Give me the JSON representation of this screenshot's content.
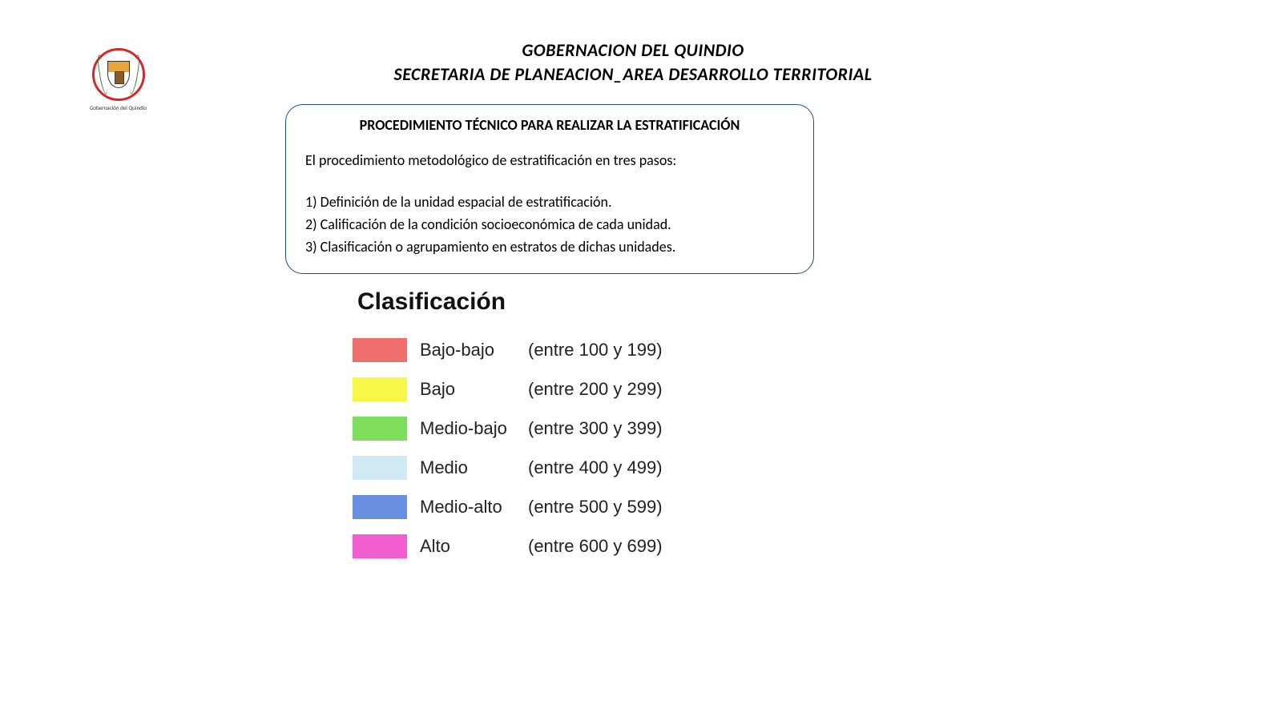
{
  "logo": {
    "caption": "Gobernación del Quindío"
  },
  "header": {
    "line1": "GOBERNACION DEL QUINDIO",
    "line2": "SECRETARIA DE PLANEACION_AREA DESARROLLO TERRITORIAL"
  },
  "procedure_box": {
    "title": "PROCEDIMIENTO TÉCNICO PARA REALIZAR LA ESTRATIFICACIÓN",
    "intro": "El procedimiento metodológico de estratificación en tres pasos:",
    "steps": [
      "1) Definición de la unidad espacial de estratificación.",
      "2)  Calificación de la condición socioeconómica de cada unidad.",
      "3) Clasificación o agrupamiento en estratos de dichas unidades."
    ],
    "border_color": "#1f4e79"
  },
  "classification": {
    "title": "Clasificación",
    "title_fontsize": 30,
    "row_fontsize": 22,
    "swatch_width": 68,
    "swatch_height": 30,
    "items": [
      {
        "color": "#f07070",
        "label": "Bajo-bajo",
        "range": "(entre 100 y 199)"
      },
      {
        "color": "#f7f74a",
        "label": "Bajo",
        "range": "(entre 200 y 299)"
      },
      {
        "color": "#7ede5a",
        "label": "Medio-bajo",
        "range": "(entre 300 y 399)"
      },
      {
        "color": "#cfe9f5",
        "label": "Medio",
        "range": "(entre 400 y 499)"
      },
      {
        "color": "#6a8fe0",
        "label": "Medio-alto",
        "range": "(entre 500 y 599)"
      },
      {
        "color": "#f25ed0",
        "label": "Alto",
        "range": "(entre 600 y 699)"
      }
    ]
  }
}
